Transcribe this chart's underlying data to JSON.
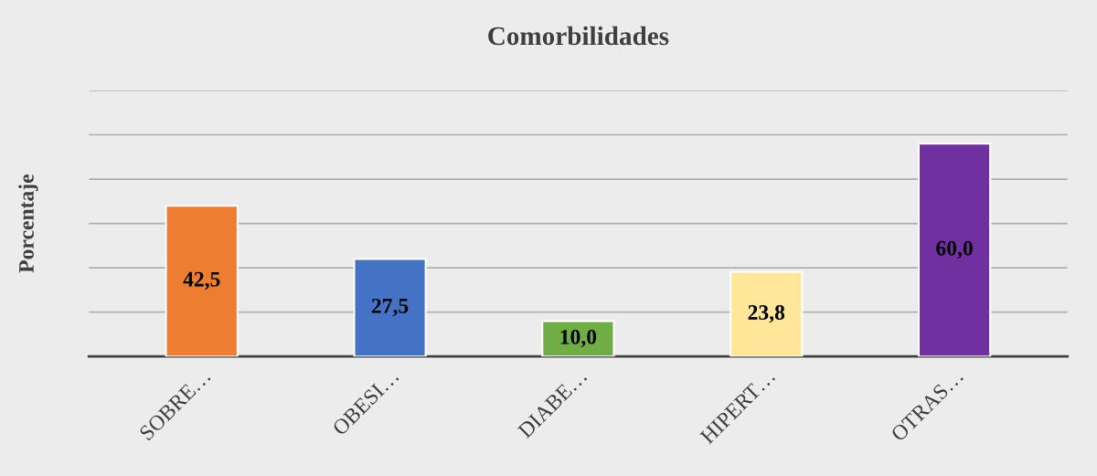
{
  "chart_data": {
    "type": "bar",
    "title": "Comorbilidades",
    "ylabel": "Porcentaje",
    "categories": [
      "SOBRE…",
      "OBESI…",
      "DIABE…",
      "HIPERT…",
      "OTRAS…"
    ],
    "values": [
      42.5,
      27.5,
      10.0,
      23.8,
      60.0
    ],
    "colors": [
      "#ed7d31",
      "#4472c4",
      "#70ad47",
      "#ffe699",
      "#7030a0"
    ],
    "value_labels": [
      "42,5",
      "27,5",
      "10,0",
      "23,8",
      "60,0"
    ],
    "ylim": [
      0,
      75
    ],
    "yticks": [
      {
        "value": 0,
        "label": null
      },
      {
        "value": 12.5,
        "label": null
      },
      {
        "value": 25,
        "label": null
      },
      {
        "value": 37.5,
        "label": null
      },
      {
        "value": 50,
        "label": null
      },
      {
        "value": 62.5,
        "label": null
      },
      {
        "value": 75,
        "label": null
      }
    ],
    "grid": "y",
    "tick_labels": "x"
  }
}
